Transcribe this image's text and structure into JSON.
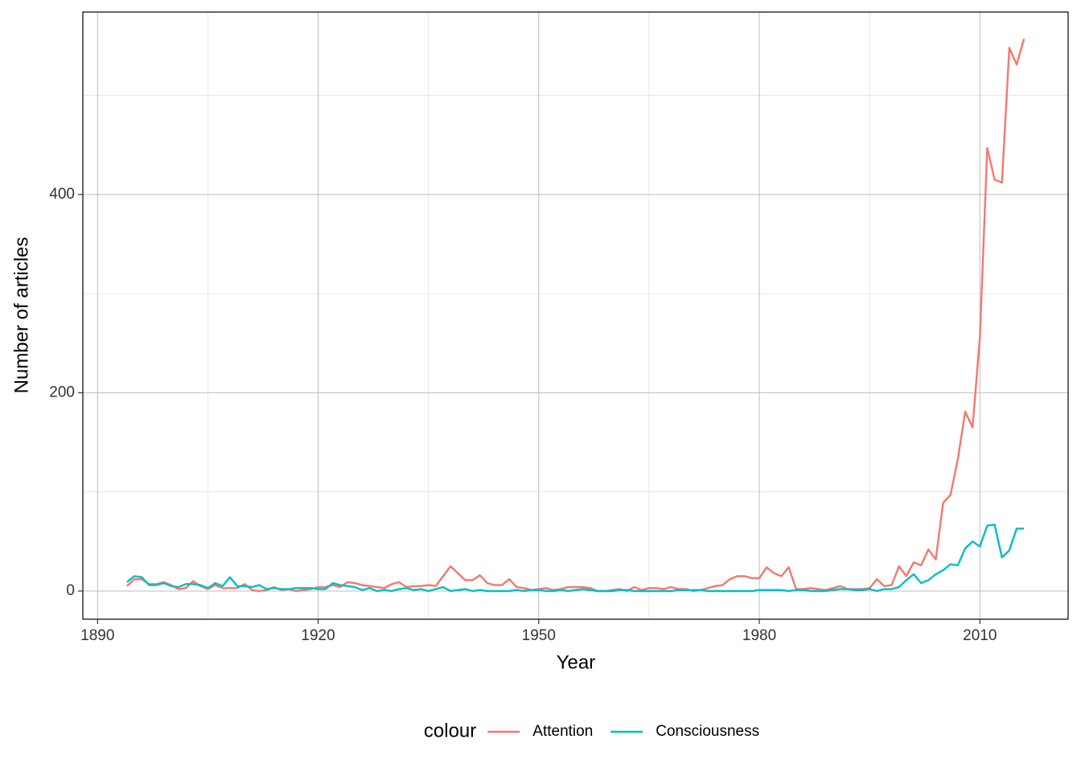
{
  "chart_data": {
    "type": "line",
    "x_label": "Year",
    "y_label": "Number of articles",
    "legend_title": "colour",
    "legend": "bottom",
    "grid": true,
    "xlim": [
      1888,
      2022
    ],
    "ylim": [
      -28.4,
      584
    ],
    "xticks": [
      1890,
      1920,
      1950,
      1980,
      2010
    ],
    "yticks": [
      0,
      200,
      400
    ],
    "minor_xticks": [
      1905,
      1935,
      1965,
      1995
    ],
    "minor_yticks": [
      100,
      300,
      500
    ],
    "x": [
      1894,
      1895,
      1896,
      1897,
      1898,
      1899,
      1900,
      1901,
      1902,
      1903,
      1904,
      1905,
      1906,
      1907,
      1908,
      1909,
      1910,
      1911,
      1912,
      1913,
      1914,
      1915,
      1916,
      1917,
      1918,
      1919,
      1920,
      1921,
      1922,
      1923,
      1924,
      1925,
      1926,
      1927,
      1928,
      1929,
      1930,
      1931,
      1932,
      1933,
      1934,
      1935,
      1936,
      1937,
      1938,
      1939,
      1940,
      1941,
      1942,
      1943,
      1944,
      1945,
      1946,
      1947,
      1948,
      1949,
      1950,
      1951,
      1952,
      1953,
      1954,
      1955,
      1956,
      1957,
      1958,
      1959,
      1960,
      1961,
      1962,
      1963,
      1964,
      1965,
      1966,
      1967,
      1968,
      1969,
      1970,
      1971,
      1972,
      1973,
      1974,
      1975,
      1976,
      1977,
      1978,
      1979,
      1980,
      1981,
      1982,
      1983,
      1984,
      1985,
      1986,
      1987,
      1988,
      1989,
      1990,
      1991,
      1992,
      1993,
      1994,
      1995,
      1996,
      1997,
      1998,
      1999,
      2000,
      2001,
      2002,
      2003,
      2004,
      2005,
      2006,
      2007,
      2008,
      2009,
      2010,
      2011,
      2012,
      2013,
      2014,
      2015,
      2016
    ],
    "series": [
      {
        "name": "Attention",
        "color": "#F8766D",
        "values": [
          5,
          12,
          12,
          7,
          7,
          9,
          6,
          2,
          3,
          10,
          5,
          2,
          6,
          3,
          3,
          3,
          7,
          1,
          0,
          1,
          4,
          1,
          2,
          0,
          1,
          2,
          4,
          4,
          6,
          4,
          9,
          8,
          6,
          5,
          4,
          3,
          7,
          9,
          4,
          5,
          5,
          6,
          5,
          15,
          25,
          18,
          11,
          11,
          16,
          8,
          6,
          6,
          12,
          4,
          3,
          1,
          2,
          3,
          1,
          2,
          4,
          4,
          4,
          3,
          0,
          0,
          1,
          2,
          0,
          4,
          1,
          3,
          3,
          2,
          4,
          2,
          2,
          0,
          1,
          3,
          5,
          6,
          12,
          15,
          15,
          13,
          13,
          24,
          18,
          15,
          24,
          2,
          2,
          3,
          2,
          1,
          3,
          5,
          2,
          2,
          2,
          3,
          12,
          5,
          6,
          25,
          15,
          29,
          26,
          42,
          32,
          89,
          97,
          133,
          181,
          165,
          256,
          447,
          415,
          412,
          548,
          531,
          557
        ]
      },
      {
        "name": "Consciousness",
        "color": "#00BFC4",
        "values": [
          9,
          15,
          14,
          6,
          6,
          8,
          5,
          4,
          7,
          7,
          6,
          3,
          8,
          5,
          14,
          5,
          5,
          4,
          6,
          2,
          3,
          2,
          2,
          3,
          3,
          3,
          2,
          2,
          8,
          6,
          5,
          4,
          1,
          3,
          0,
          1,
          0,
          2,
          3,
          1,
          2,
          0,
          2,
          4,
          0,
          1,
          2,
          0,
          1,
          0,
          0,
          0,
          0,
          1,
          0,
          1,
          1,
          0,
          0,
          1,
          0,
          1,
          2,
          1,
          0,
          0,
          0,
          1,
          1,
          0,
          0,
          0,
          0,
          0,
          0,
          1,
          1,
          1,
          1,
          0,
          0,
          0,
          0,
          0,
          0,
          0,
          1,
          1,
          1,
          1,
          0,
          1,
          1,
          0,
          0,
          0,
          1,
          2,
          2,
          1,
          1,
          2,
          0,
          2,
          2,
          4,
          11,
          17,
          8,
          11,
          17,
          21,
          27,
          26,
          43,
          50,
          45,
          66,
          67,
          34,
          41,
          63,
          63
        ]
      }
    ]
  }
}
